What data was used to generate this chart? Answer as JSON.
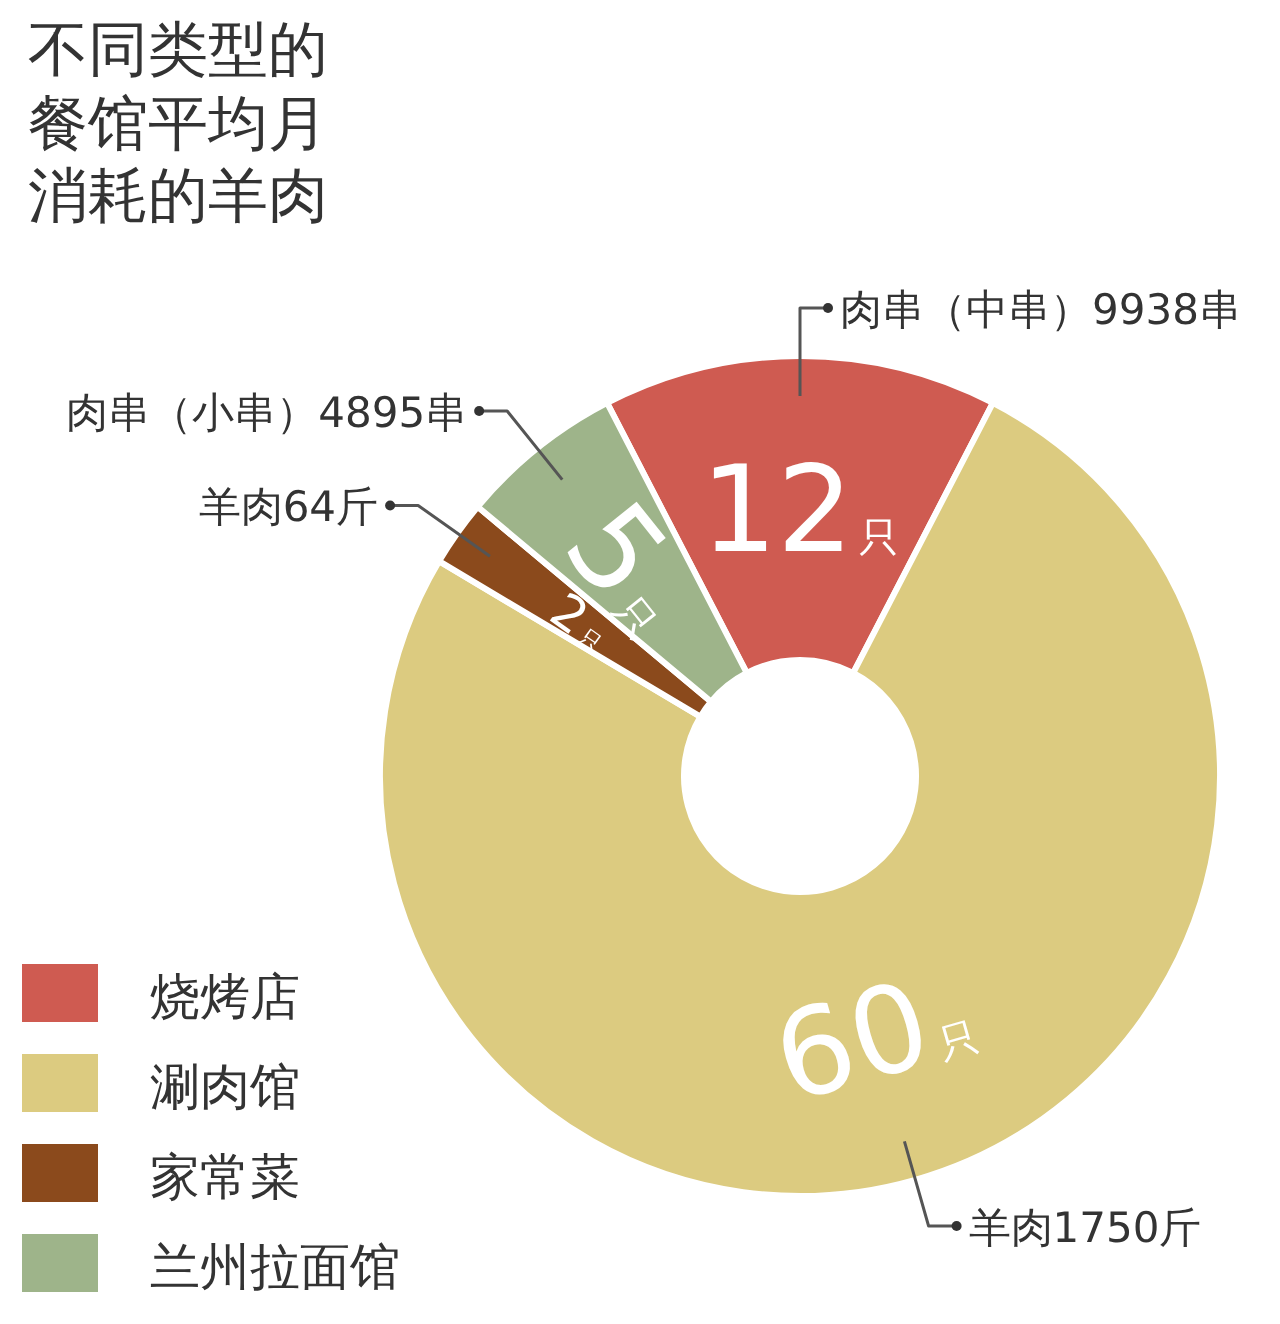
{
  "chart_data": {
    "type": "donut",
    "title": "不同类型的餐馆平均月消耗的羊肉",
    "categories": [
      "烧烤店",
      "涮肉馆",
      "家常菜",
      "兰州拉面馆"
    ],
    "values": [
      12,
      60,
      2,
      5
    ],
    "colors": [
      "#cf5b51",
      "#dccb80",
      "#8b4a1c",
      "#9eb48a"
    ],
    "value_labels": [
      "12只",
      "60只",
      "2只",
      "5只"
    ],
    "annotations": [
      "肉串（中串）9938串",
      "羊肉1750斤",
      "羊肉64斤",
      "肉串（小串）4895串"
    ],
    "legend": "bottom left"
  }
}
